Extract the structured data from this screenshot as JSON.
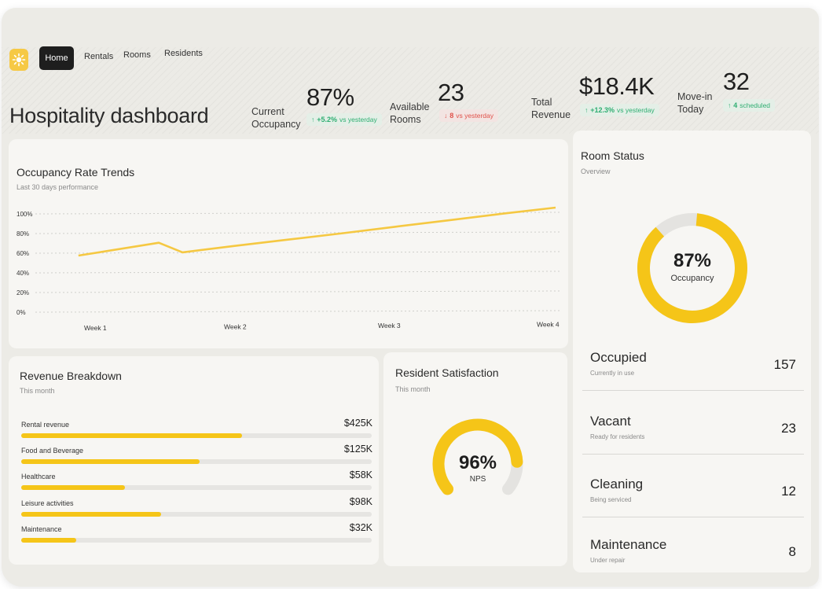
{
  "nav": {
    "items": [
      {
        "label": "Home"
      },
      {
        "label": "Rentals"
      },
      {
        "label": "Rooms"
      },
      {
        "label": "Residents"
      }
    ]
  },
  "header": {
    "title": "Hospitality dashboard"
  },
  "kpis": [
    {
      "label_line1": "Current",
      "label_line2": "Occupancy",
      "value": "87%",
      "delta_value": "+5.2%",
      "delta_text": "vs yesterday",
      "direction": "up"
    },
    {
      "label_line1": "Available",
      "label_line2": "Rooms",
      "value": "23",
      "delta_value": "8",
      "delta_text": "vs yesterday",
      "direction": "down"
    },
    {
      "label_line1": "Total",
      "label_line2": "Revenue",
      "value": "$18.4K",
      "delta_value": "+12.3%",
      "delta_text": "vs yesterday",
      "direction": "up"
    },
    {
      "label_line1": "Move-in",
      "label_line2": "Today",
      "value": "32",
      "delta_value": "4",
      "delta_text": "scheduled",
      "direction": "up"
    }
  ],
  "occupancy_trends": {
    "title": "Occupancy Rate Trends",
    "subtitle": "Last 30 days performance"
  },
  "chart_data": {
    "type": "line",
    "title": "Occupancy Rate Trends",
    "subtitle": "Last 30 days performance",
    "categories": [
      "Week 1",
      "Week 2",
      "Week 3",
      "Week 4"
    ],
    "y_ticks": [
      "100%",
      "80%",
      "60%",
      "40%",
      "20%",
      "0%"
    ],
    "ylim": [
      0,
      100
    ],
    "grid": true,
    "series": [
      {
        "values": [
          61,
          73,
          64,
          70,
          76,
          82,
          88,
          94,
          100,
          106
        ],
        "x": [
          0.1,
          0.71,
          0.89,
          1.28,
          1.69,
          2.11,
          2.5,
          2.9,
          3.3,
          3.72
        ]
      }
    ],
    "color": "#f5c842"
  },
  "revenue": {
    "title": "Revenue Breakdown",
    "subtitle": "This month",
    "rows": [
      {
        "label": "Rental revenue",
        "value": "$425K",
        "fraction": 0.63
      },
      {
        "label": "Food and Beverage",
        "value": "$125K",
        "fraction": 0.51
      },
      {
        "label": "Healthcare",
        "value": "$58K",
        "fraction": 0.295
      },
      {
        "label": "Leisure activities",
        "value": "$98K",
        "fraction": 0.4
      },
      {
        "label": "Maintenance",
        "value": "$32K",
        "fraction": 0.157
      }
    ]
  },
  "satisfaction": {
    "title": "Resident Satisfaction",
    "subtitle": "This month",
    "value": "96%",
    "label": "NPS",
    "fraction": 0.96
  },
  "room_status": {
    "title": "Room Status",
    "subtitle": "Overview",
    "donut_value": "87%",
    "donut_label": "Occupancy",
    "fraction": 0.87,
    "rows": [
      {
        "label": "Occupied",
        "sub": "Currently in use",
        "value": "157"
      },
      {
        "label": "Vacant",
        "sub": "Ready for residents",
        "value": "23"
      },
      {
        "label": "Cleaning",
        "sub": "Being serviced",
        "value": "12"
      },
      {
        "label": "Maintenance",
        "sub": "Under repair",
        "value": "8"
      }
    ]
  },
  "colors": {
    "accent": "#f5c518",
    "up": "#2fae72",
    "down": "#e0514a"
  }
}
